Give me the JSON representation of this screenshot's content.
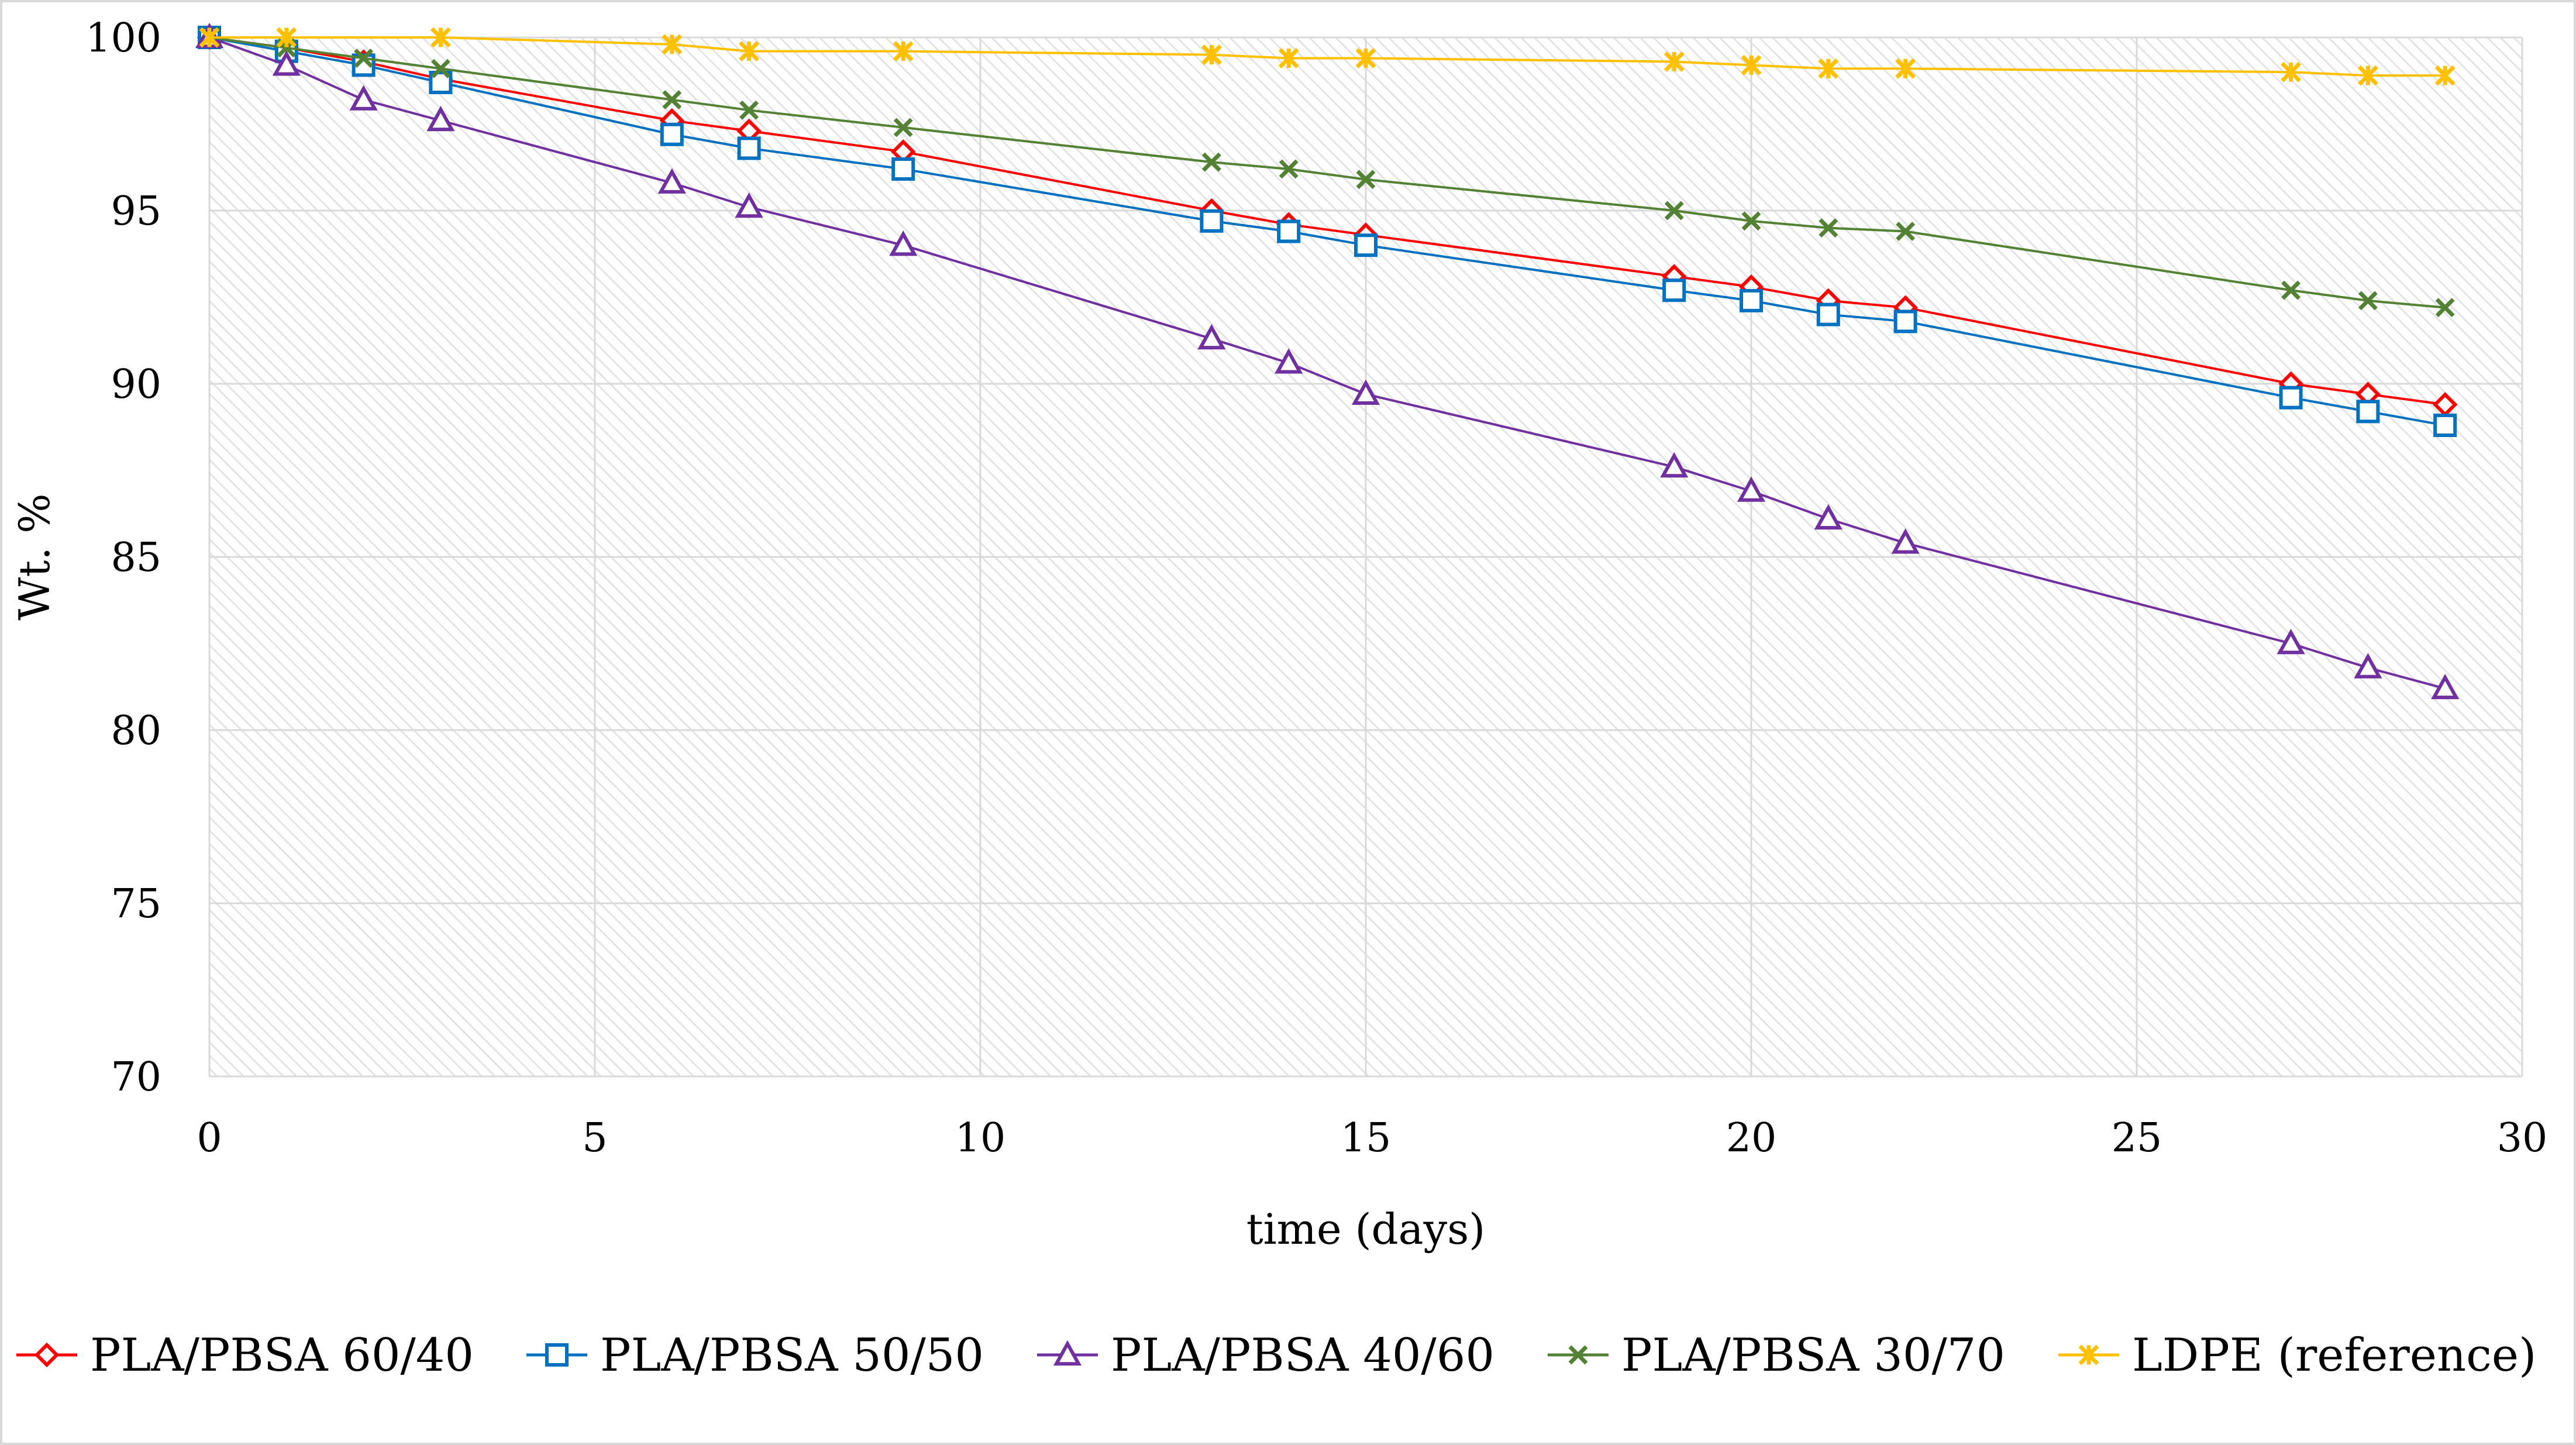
{
  "chart_data": {
    "type": "line",
    "title": "",
    "xlabel": "time (days)",
    "ylabel": "Wt. %",
    "xlim": [
      0,
      30
    ],
    "ylim": [
      70,
      100
    ],
    "xticks": [
      0,
      5,
      10,
      15,
      20,
      25,
      30
    ],
    "yticks": [
      70,
      75,
      80,
      85,
      90,
      95,
      100
    ],
    "grid": true,
    "legend_position": "bottom",
    "series": [
      {
        "name": "PLA/PBSA 60/40",
        "color": "#ff0000",
        "marker": "diamond",
        "x": [
          0,
          1,
          2,
          3,
          6,
          7,
          9,
          13,
          14,
          15,
          19,
          20,
          21,
          22,
          27,
          28,
          29
        ],
        "y": [
          100,
          99.7,
          99.3,
          98.8,
          97.6,
          97.3,
          96.7,
          95.0,
          94.6,
          94.3,
          93.1,
          92.8,
          92.4,
          92.2,
          90.0,
          89.7,
          89.4
        ]
      },
      {
        "name": "PLA/PBSA 50/50",
        "color": "#0070c0",
        "marker": "square",
        "x": [
          0,
          1,
          2,
          3,
          6,
          7,
          9,
          13,
          14,
          15,
          19,
          20,
          21,
          22,
          27,
          28,
          29
        ],
        "y": [
          100,
          99.6,
          99.2,
          98.7,
          97.2,
          96.8,
          96.2,
          94.7,
          94.4,
          94.0,
          92.7,
          92.4,
          92.0,
          91.8,
          89.6,
          89.2,
          88.8
        ]
      },
      {
        "name": "PLA/PBSA 40/60",
        "color": "#7030a0",
        "marker": "triangle",
        "x": [
          0,
          1,
          2,
          3,
          6,
          7,
          9,
          13,
          14,
          15,
          19,
          20,
          21,
          22,
          27,
          28,
          29
        ],
        "y": [
          100,
          99.2,
          98.2,
          97.6,
          95.8,
          95.1,
          94.0,
          91.3,
          90.6,
          89.7,
          87.6,
          86.9,
          86.1,
          85.4,
          82.5,
          81.8,
          81.2
        ]
      },
      {
        "name": "PLA/PBSA 30/70",
        "color": "#548235",
        "marker": "x",
        "x": [
          0,
          1,
          2,
          3,
          6,
          7,
          9,
          13,
          14,
          15,
          19,
          20,
          21,
          22,
          27,
          28,
          29
        ],
        "y": [
          100,
          99.7,
          99.4,
          99.1,
          98.2,
          97.9,
          97.4,
          96.4,
          96.2,
          95.9,
          95.0,
          94.7,
          94.5,
          94.4,
          92.7,
          92.4,
          92.2
        ]
      },
      {
        "name": "LDPE (reference)",
        "color": "#ffc000",
        "marker": "star",
        "x": [
          0,
          1,
          3,
          6,
          7,
          9,
          13,
          14,
          15,
          19,
          20,
          21,
          22,
          27,
          28,
          29
        ],
        "y": [
          100,
          100,
          100,
          99.8,
          99.6,
          99.6,
          99.5,
          99.4,
          99.4,
          99.3,
          99.2,
          99.1,
          99.1,
          99.0,
          98.9,
          98.9
        ]
      }
    ]
  }
}
